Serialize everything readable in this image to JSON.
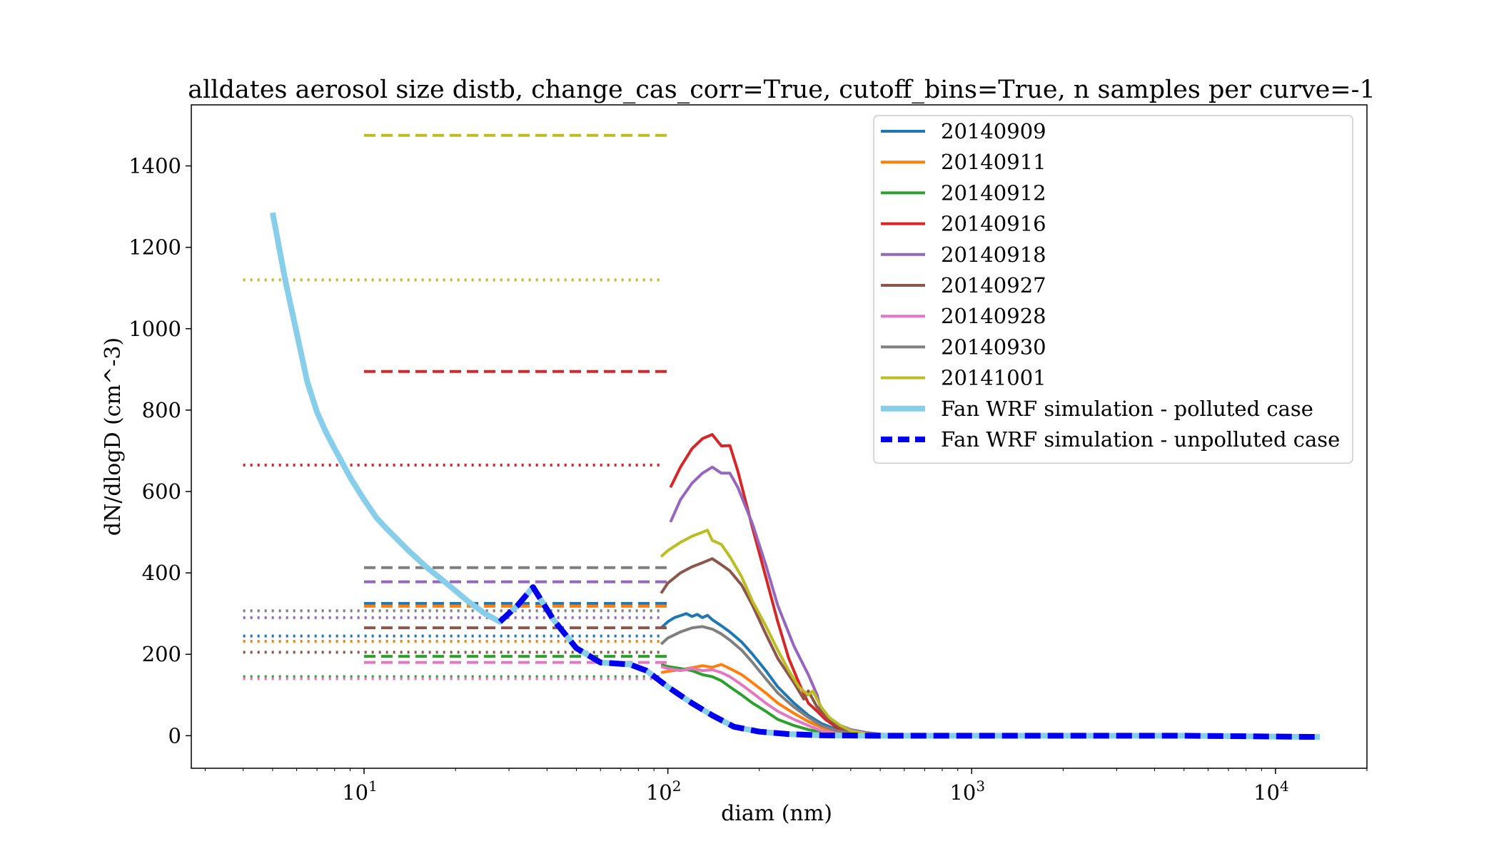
{
  "chart_data": {
    "type": "line",
    "title": "alldates aerosol size distb, change_cas_corr=True, cutoff_bins=True, n samples per curve=-1",
    "xlabel": "diam (nm)",
    "ylabel": "dN/dlogD (cm^-3)",
    "xscale": "log",
    "xlim": [
      2.7,
      20000
    ],
    "ylim": [
      -80,
      1550
    ],
    "grid": false,
    "legend_position": "top-right",
    "x_ticks": [
      {
        "value": 10,
        "base": "10",
        "exp": "1"
      },
      {
        "value": 100,
        "base": "10",
        "exp": "2"
      },
      {
        "value": 1000,
        "base": "10",
        "exp": "3"
      },
      {
        "value": 10000,
        "base": "10",
        "exp": "4"
      }
    ],
    "y_ticks": [
      0,
      200,
      400,
      600,
      800,
      1000,
      1200,
      1400
    ],
    "series": [
      {
        "name": "20140909",
        "color": "#1f77b4",
        "width": 4,
        "levels": [
          {
            "style": "dotted",
            "x": [
              4,
              95
            ],
            "y": 245
          },
          {
            "style": "dashed",
            "x": [
              10,
              100
            ],
            "y": 325
          }
        ],
        "x": [
          95,
          100,
          105,
          110,
          115,
          120,
          125,
          130,
          135,
          140,
          150,
          160,
          175,
          190,
          210,
          230,
          260,
          290,
          320,
          360,
          400,
          450,
          500
        ],
        "y": [
          265,
          280,
          290,
          295,
          300,
          293,
          298,
          290,
          296,
          285,
          270,
          255,
          230,
          200,
          160,
          120,
          80,
          50,
          30,
          15,
          8,
          4,
          2
        ]
      },
      {
        "name": "20140911",
        "color": "#ff7f0e",
        "width": 4,
        "levels": [
          {
            "style": "dotted",
            "x": [
              4,
              95
            ],
            "y": 232
          },
          {
            "style": "dashed",
            "x": [
              10,
              100
            ],
            "y": 318
          }
        ],
        "x": [
          95,
          100,
          110,
          120,
          130,
          140,
          150,
          160,
          175,
          190,
          210,
          230,
          260,
          290,
          320,
          360,
          400,
          450,
          500
        ],
        "y": [
          155,
          158,
          162,
          167,
          172,
          168,
          175,
          165,
          150,
          130,
          105,
          80,
          55,
          35,
          20,
          10,
          5,
          2,
          1
        ]
      },
      {
        "name": "20140912",
        "color": "#2ca02c",
        "width": 4,
        "levels": [
          {
            "style": "dotted",
            "x": [
              4,
              95
            ],
            "y": 145
          },
          {
            "style": "dashed",
            "x": [
              10,
              100
            ],
            "y": 195
          }
        ],
        "x": [
          95,
          100,
          110,
          120,
          130,
          140,
          150,
          160,
          175,
          190,
          210,
          230,
          260,
          290,
          320,
          360,
          400
        ],
        "y": [
          175,
          170,
          165,
          160,
          150,
          145,
          135,
          120,
          100,
          80,
          60,
          40,
          25,
          15,
          8,
          4,
          2
        ]
      },
      {
        "name": "20140916",
        "color": "#d62728",
        "width": 4,
        "levels": [
          {
            "style": "dotted",
            "x": [
              4,
              95
            ],
            "y": 665
          },
          {
            "style": "dashed",
            "x": [
              10,
              100
            ],
            "y": 895
          }
        ],
        "x": [
          102,
          110,
          120,
          130,
          140,
          150,
          160,
          170,
          190,
          210,
          230,
          250,
          270,
          290,
          310,
          330,
          360,
          400,
          450,
          500
        ],
        "y": [
          610,
          660,
          705,
          730,
          740,
          712,
          713,
          650,
          510,
          390,
          280,
          190,
          130,
          80,
          60,
          40,
          20,
          10,
          5,
          2
        ]
      },
      {
        "name": "20140918",
        "color": "#9467bd",
        "width": 4,
        "levels": [
          {
            "style": "dotted",
            "x": [
              4,
              95
            ],
            "y": 290
          },
          {
            "style": "dashed",
            "x": [
              10,
              100
            ],
            "y": 378
          }
        ],
        "x": [
          102,
          110,
          120,
          130,
          140,
          150,
          160,
          170,
          190,
          210,
          230,
          260,
          290,
          310,
          320,
          340,
          370,
          400,
          450,
          500,
          600
        ],
        "y": [
          525,
          580,
          620,
          645,
          660,
          645,
          645,
          610,
          520,
          420,
          320,
          220,
          150,
          100,
          60,
          40,
          25,
          15,
          8,
          4,
          1
        ]
      },
      {
        "name": "20140927",
        "color": "#8c564b",
        "width": 4,
        "levels": [
          {
            "style": "dotted",
            "x": [
              4,
              95
            ],
            "y": 205
          },
          {
            "style": "dashed",
            "x": [
              10,
              100
            ],
            "y": 265
          }
        ],
        "x": [
          95,
          100,
          110,
          120,
          130,
          140,
          150,
          160,
          175,
          190,
          210,
          230,
          260,
          280,
          290,
          310,
          340,
          370,
          400,
          450,
          500
        ],
        "y": [
          350,
          375,
          400,
          415,
          425,
          435,
          420,
          405,
          370,
          320,
          250,
          190,
          130,
          90,
          110,
          70,
          40,
          20,
          10,
          5,
          2
        ]
      },
      {
        "name": "20140928",
        "color": "#e377c2",
        "width": 4,
        "levels": [
          {
            "style": "dotted",
            "x": [
              4,
              95
            ],
            "y": 140
          },
          {
            "style": "dashed",
            "x": [
              10,
              100
            ],
            "y": 180
          }
        ],
        "x": [
          95,
          100,
          110,
          120,
          130,
          140,
          150,
          160,
          175,
          190,
          210,
          230,
          260,
          290,
          320,
          360,
          400
        ],
        "y": [
          170,
          165,
          160,
          165,
          160,
          162,
          155,
          145,
          125,
          105,
          80,
          60,
          40,
          25,
          12,
          6,
          3
        ]
      },
      {
        "name": "20140930",
        "color": "#7f7f7f",
        "width": 4,
        "levels": [
          {
            "style": "dotted",
            "x": [
              4,
              95
            ],
            "y": 307
          },
          {
            "style": "dashed",
            "x": [
              10,
              100
            ],
            "y": 413
          }
        ],
        "x": [
          95,
          100,
          110,
          120,
          130,
          140,
          150,
          160,
          175,
          190,
          210,
          230,
          260,
          290,
          320,
          360,
          400,
          450
        ],
        "y": [
          225,
          240,
          255,
          265,
          268,
          262,
          250,
          235,
          210,
          180,
          140,
          105,
          70,
          45,
          25,
          12,
          6,
          2
        ]
      },
      {
        "name": "20141001",
        "color": "#bcbd22",
        "width": 4,
        "levels": [
          {
            "style": "dotted",
            "x": [
              4,
              95
            ],
            "y": 1120
          },
          {
            "style": "dashed",
            "x": [
              10,
              100
            ],
            "y": 1475
          }
        ],
        "x": [
          95,
          100,
          110,
          120,
          130,
          135,
          140,
          150,
          160,
          175,
          190,
          210,
          230,
          250,
          270,
          290,
          300,
          320,
          340,
          370,
          400,
          450,
          500
        ],
        "y": [
          440,
          455,
          475,
          490,
          500,
          505,
          480,
          470,
          440,
          390,
          330,
          270,
          210,
          160,
          120,
          100,
          110,
          70,
          45,
          25,
          12,
          5,
          2
        ]
      },
      {
        "name": "Fan WRF simulation - polluted case",
        "color": "#87ceeb",
        "width": 8,
        "x": [
          5,
          5.5,
          6,
          6.5,
          7,
          7.5,
          8,
          9,
          10,
          11,
          12,
          14,
          16,
          19,
          22,
          25,
          28,
          32,
          36,
          42,
          50,
          60,
          75,
          85,
          100,
          120,
          140,
          165,
          200,
          250,
          320,
          500,
          1000,
          5000,
          14000
        ],
        "y": [
          1285,
          1120,
          990,
          870,
          795,
          745,
          705,
          635,
          580,
          535,
          505,
          455,
          415,
          370,
          330,
          300,
          280,
          320,
          365,
          285,
          215,
          180,
          175,
          160,
          120,
          80,
          50,
          22,
          10,
          4,
          1,
          0,
          0,
          0,
          -3
        ]
      },
      {
        "name": "Fan WRF simulation - unpolluted case",
        "color": "#0000ee",
        "width": 8,
        "dashed": true,
        "x": [
          28,
          32,
          36,
          42,
          50,
          60,
          75,
          85,
          100,
          120,
          140,
          165,
          200,
          250,
          320,
          500,
          1000,
          5000,
          14000
        ],
        "y": [
          280,
          320,
          365,
          285,
          215,
          180,
          175,
          160,
          120,
          80,
          50,
          22,
          10,
          4,
          1,
          0,
          0,
          0,
          -3
        ]
      }
    ]
  }
}
